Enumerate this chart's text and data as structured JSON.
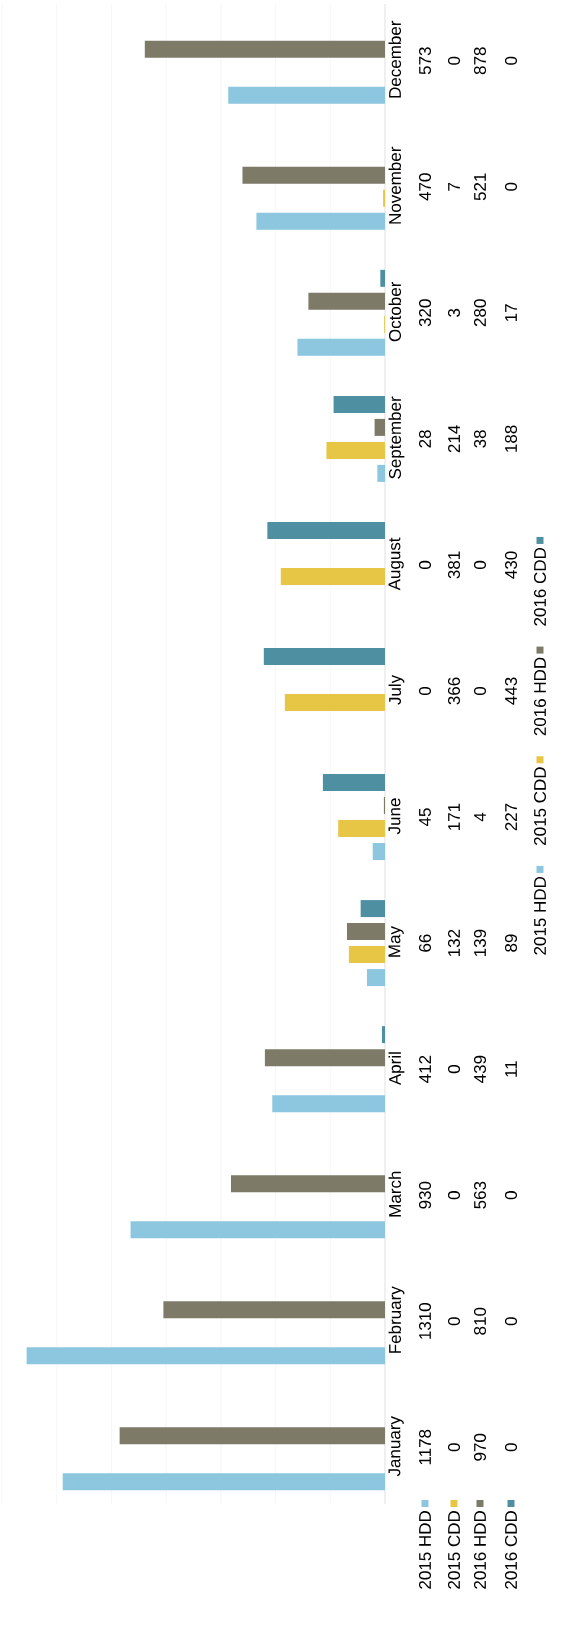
{
  "chart_data": {
    "type": "bar",
    "orientation": "horizontal",
    "categories": [
      "December",
      "November",
      "October",
      "September",
      "August",
      "July",
      "June",
      "May",
      "April",
      "March",
      "February",
      "January"
    ],
    "series": [
      {
        "name": "2015 HDD",
        "color": "#8cc6df",
        "values": [
          573,
          470,
          320,
          28,
          0,
          0,
          45,
          66,
          412,
          930,
          1310,
          1178
        ]
      },
      {
        "name": "2015 CDD",
        "color": "#e8c645",
        "values": [
          0,
          7,
          3,
          214,
          381,
          366,
          171,
          132,
          0,
          0,
          0,
          0
        ]
      },
      {
        "name": "2016 HDD",
        "color": "#7d7a68",
        "values": [
          878,
          521,
          280,
          38,
          0,
          0,
          4,
          139,
          439,
          563,
          810,
          970
        ]
      },
      {
        "name": "2016 CDD",
        "color": "#4f8fa2",
        "values": [
          0,
          0,
          17,
          188,
          430,
          443,
          227,
          89,
          11,
          0,
          0,
          0
        ]
      }
    ],
    "xlim": [
      1400,
      0
    ],
    "xticks": [
      {
        "value": 0,
        "label": null
      },
      {
        "value": 200,
        "label": null
      },
      {
        "value": 400,
        "label": null
      },
      {
        "value": 600,
        "label": null
      },
      {
        "value": 800,
        "label": null
      },
      {
        "value": 1000,
        "label": null
      },
      {
        "value": 1200,
        "label": null
      },
      {
        "value": 1400,
        "label": null
      }
    ],
    "grid": "x",
    "tick_labels": "y",
    "legend": "right",
    "data_labels": true
  }
}
